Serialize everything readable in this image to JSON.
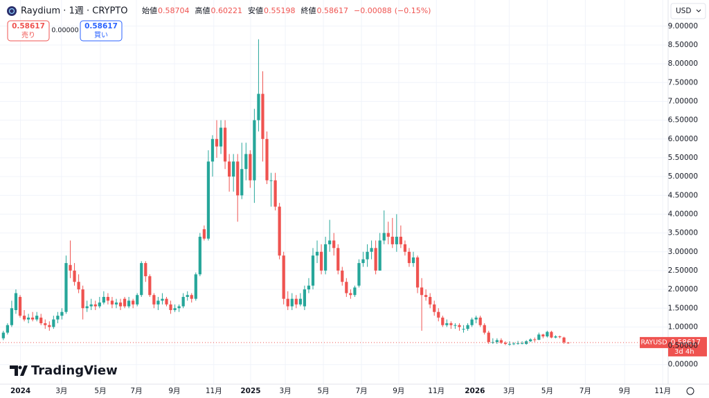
{
  "chart_data": {
    "type": "candlestick",
    "title": "Raydium · 1週 · CRYPTO",
    "legend": {
      "labels": [
        "始値",
        "高値",
        "安値",
        "終値"
      ],
      "change": "−0.00088",
      "change_pct": "(−0.15%)"
    },
    "buttons": {
      "sell_price": "0.58617",
      "sell_label": "売り",
      "spread": "0.00000",
      "buy_price": "0.58617",
      "buy_label": "買い"
    },
    "currency": "USD",
    "symbol_tag": "RAYUSD",
    "price_tag": "0.58617",
    "countdown": "3d 4h",
    "brand": "TradingView",
    "up_color": "#26a69a",
    "down_color": "#ef5350",
    "grid": true,
    "xlim": [
      -0.8,
      158.9
    ],
    "xticks": [
      {
        "value": 4.1,
        "label": "2024"
      },
      {
        "value": 13.9,
        "label": "3月"
      },
      {
        "value": 23.2,
        "label": "5月"
      },
      {
        "value": 31.8,
        "label": "7月"
      },
      {
        "value": 40.9,
        "label": "9月"
      },
      {
        "value": 50.3,
        "label": "11月"
      },
      {
        "value": 59.1,
        "label": "2025"
      },
      {
        "value": 67.4,
        "label": "3月"
      },
      {
        "value": 76.5,
        "label": "5月"
      },
      {
        "value": 85.6,
        "label": "7月"
      },
      {
        "value": 94.5,
        "label": "9月"
      },
      {
        "value": 103.5,
        "label": "11月"
      },
      {
        "value": 112.7,
        "label": "2026"
      },
      {
        "value": 120.9,
        "label": "3月"
      },
      {
        "value": 130,
        "label": "5月"
      },
      {
        "value": 139.1,
        "label": "7月"
      },
      {
        "value": 148.5,
        "label": "9月"
      },
      {
        "value": 157.6,
        "label": "11月"
      }
    ],
    "ylim": [
      -0.52,
      9.18
    ],
    "yticks": [
      {
        "value": 0,
        "label": "0.00000"
      },
      {
        "value": 0.5,
        "label": "0.50000"
      },
      {
        "value": 1,
        "label": "1.00000"
      },
      {
        "value": 1.5,
        "label": "1.50000"
      },
      {
        "value": 2,
        "label": "2.00000"
      },
      {
        "value": 2.5,
        "label": "2.50000"
      },
      {
        "value": 3,
        "label": "3.00000"
      },
      {
        "value": 3.5,
        "label": "3.50000"
      },
      {
        "value": 4,
        "label": "4.00000"
      },
      {
        "value": 4.5,
        "label": "4.50000"
      },
      {
        "value": 5,
        "label": "5.00000"
      },
      {
        "value": 5.5,
        "label": "5.50000"
      },
      {
        "value": 6,
        "label": "6.00000"
      },
      {
        "value": 6.5,
        "label": "6.50000"
      },
      {
        "value": 7,
        "label": "7.00000"
      },
      {
        "value": 7.5,
        "label": "7.50000"
      },
      {
        "value": 8,
        "label": "8.00000"
      },
      {
        "value": 8.5,
        "label": "8.50000"
      },
      {
        "value": 9,
        "label": "9.00000"
      }
    ],
    "ohlc": [
      [
        0.7,
        0.9,
        0.65,
        0.85
      ],
      [
        0.85,
        1.1,
        0.8,
        1.05
      ],
      [
        1.05,
        1.7,
        1.0,
        1.5
      ],
      [
        1.45,
        2.0,
        1.35,
        1.9
      ],
      [
        1.8,
        1.85,
        1.25,
        1.3
      ],
      [
        1.3,
        1.45,
        1.15,
        1.2
      ],
      [
        1.2,
        1.35,
        1.1,
        1.25
      ],
      [
        1.25,
        1.4,
        1.15,
        1.2
      ],
      [
        1.2,
        1.4,
        1.15,
        1.3
      ],
      [
        1.25,
        1.35,
        1.05,
        1.1
      ],
      [
        1.1,
        1.2,
        0.95,
        1.05
      ],
      [
        1.05,
        1.15,
        0.9,
        1.0
      ],
      [
        1.0,
        1.3,
        0.95,
        1.2
      ],
      [
        1.2,
        1.4,
        1.1,
        1.3
      ],
      [
        1.3,
        1.5,
        1.2,
        1.4
      ],
      [
        1.4,
        2.9,
        1.35,
        2.7
      ],
      [
        2.65,
        3.3,
        2.3,
        2.5
      ],
      [
        2.5,
        2.7,
        2.1,
        2.2
      ],
      [
        2.2,
        2.4,
        1.9,
        2.0
      ],
      [
        2.0,
        2.1,
        1.2,
        1.5
      ],
      [
        1.5,
        1.7,
        1.4,
        1.55
      ],
      [
        1.55,
        1.75,
        1.45,
        1.6
      ],
      [
        1.6,
        1.7,
        1.45,
        1.55
      ],
      [
        1.55,
        1.8,
        1.5,
        1.65
      ],
      [
        1.65,
        1.95,
        1.6,
        1.8
      ],
      [
        1.8,
        1.9,
        1.6,
        1.7
      ],
      [
        1.7,
        1.8,
        1.5,
        1.6
      ],
      [
        1.6,
        1.75,
        1.5,
        1.65
      ],
      [
        1.65,
        1.75,
        1.45,
        1.55
      ],
      [
        1.75,
        1.8,
        1.5,
        1.55
      ],
      [
        1.55,
        1.8,
        1.5,
        1.7
      ],
      [
        1.7,
        1.75,
        1.5,
        1.6
      ],
      [
        1.6,
        1.9,
        1.55,
        1.85
      ],
      [
        1.85,
        2.75,
        1.8,
        2.7
      ],
      [
        2.7,
        2.75,
        2.2,
        2.35
      ],
      [
        2.35,
        2.4,
        1.8,
        1.85
      ],
      [
        1.85,
        1.9,
        1.5,
        1.6
      ],
      [
        1.6,
        1.8,
        1.45,
        1.7
      ],
      [
        1.7,
        1.9,
        1.6,
        1.75
      ],
      [
        1.75,
        1.8,
        1.55,
        1.6
      ],
      [
        1.6,
        1.7,
        1.35,
        1.45
      ],
      [
        1.45,
        1.6,
        1.4,
        1.5
      ],
      [
        1.5,
        1.6,
        1.4,
        1.55
      ],
      [
        1.55,
        1.9,
        1.5,
        1.8
      ],
      [
        1.8,
        1.95,
        1.7,
        1.85
      ],
      [
        1.85,
        1.9,
        1.65,
        1.75
      ],
      [
        1.75,
        2.45,
        1.7,
        2.4
      ],
      [
        2.4,
        3.5,
        2.35,
        3.4
      ],
      [
        3.6,
        3.7,
        3.3,
        3.35
      ],
      [
        3.35,
        5.7,
        3.3,
        5.4
      ],
      [
        5.4,
        6.1,
        5.0,
        6.0
      ],
      [
        6.0,
        6.5,
        5.5,
        5.8
      ],
      [
        5.8,
        6.5,
        5.6,
        6.3
      ],
      [
        6.3,
        6.5,
        5.2,
        5.4
      ],
      [
        5.4,
        5.6,
        4.6,
        5.0
      ],
      [
        5.0,
        5.6,
        4.6,
        5.4
      ],
      [
        5.4,
        5.6,
        3.8,
        4.5
      ],
      [
        4.5,
        5.9,
        4.4,
        5.2
      ],
      [
        5.2,
        5.9,
        4.9,
        5.6
      ],
      [
        5.6,
        5.7,
        4.7,
        4.9
      ],
      [
        4.9,
        6.8,
        4.3,
        6.5
      ],
      [
        6.5,
        8.65,
        6.2,
        7.2
      ],
      [
        7.2,
        7.8,
        5.4,
        6.0
      ],
      [
        6.0,
        6.2,
        4.8,
        4.9
      ],
      [
        4.9,
        5.1,
        4.2,
        4.9
      ],
      [
        4.9,
        5.1,
        4.1,
        4.2
      ],
      [
        4.2,
        4.3,
        2.8,
        2.9
      ],
      [
        2.9,
        3.0,
        1.6,
        1.75
      ],
      [
        1.75,
        1.95,
        1.45,
        1.55
      ],
      [
        1.55,
        1.9,
        1.45,
        1.75
      ],
      [
        1.75,
        1.85,
        1.5,
        1.6
      ],
      [
        1.6,
        1.9,
        1.55,
        1.75
      ],
      [
        1.55,
        2.1,
        1.45,
        2.0
      ],
      [
        2.0,
        2.3,
        1.9,
        2.1
      ],
      [
        2.1,
        3.1,
        2.0,
        2.9
      ],
      [
        2.9,
        3.3,
        2.7,
        3.0
      ],
      [
        3.0,
        3.2,
        2.4,
        2.5
      ],
      [
        2.5,
        3.4,
        2.4,
        3.2
      ],
      [
        3.2,
        3.85,
        3.0,
        3.3
      ],
      [
        3.3,
        3.5,
        2.9,
        3.1
      ],
      [
        3.1,
        3.2,
        2.4,
        2.5
      ],
      [
        2.5,
        2.6,
        2.1,
        2.2
      ],
      [
        2.2,
        2.3,
        1.8,
        1.9
      ],
      [
        1.9,
        2.0,
        1.75,
        1.85
      ],
      [
        1.85,
        2.1,
        1.8,
        2.05
      ],
      [
        2.1,
        2.8,
        2.05,
        2.7
      ],
      [
        2.7,
        3.0,
        2.6,
        2.8
      ],
      [
        2.8,
        3.2,
        2.6,
        3.0
      ],
      [
        3.0,
        3.3,
        2.8,
        3.1
      ],
      [
        3.1,
        3.3,
        2.4,
        2.5
      ],
      [
        2.5,
        3.5,
        2.5,
        3.3
      ],
      [
        3.3,
        4.1,
        3.2,
        3.5
      ],
      [
        3.5,
        3.8,
        3.2,
        3.4
      ],
      [
        3.4,
        3.9,
        3.1,
        3.2
      ],
      [
        3.2,
        4.0,
        3.0,
        3.4
      ],
      [
        3.4,
        3.7,
        3.1,
        3.2
      ],
      [
        3.2,
        3.3,
        2.9,
        3.0
      ],
      [
        3.0,
        3.1,
        2.6,
        2.7
      ],
      [
        2.7,
        3.0,
        2.6,
        2.85
      ],
      [
        2.85,
        2.9,
        1.9,
        2.05
      ],
      [
        2.05,
        2.3,
        0.9,
        1.85
      ],
      [
        1.85,
        2.0,
        1.7,
        1.8
      ],
      [
        1.8,
        1.9,
        1.5,
        1.6
      ],
      [
        1.6,
        1.7,
        1.3,
        1.4
      ],
      [
        1.4,
        1.5,
        1.15,
        1.25
      ],
      [
        1.25,
        1.3,
        1.0,
        1.05
      ],
      [
        1.05,
        1.2,
        1.0,
        1.1
      ],
      [
        1.1,
        1.15,
        0.95,
        1.05
      ],
      [
        1.05,
        1.1,
        0.95,
        1.05
      ],
      [
        1.05,
        1.1,
        0.9,
        1.0
      ],
      [
        0.95,
        1.05,
        0.85,
        0.95
      ],
      [
        0.95,
        1.1,
        0.9,
        1.05
      ],
      [
        1.05,
        1.25,
        1.0,
        1.2
      ],
      [
        1.2,
        1.3,
        1.1,
        1.25
      ],
      [
        1.25,
        1.3,
        1.0,
        1.05
      ],
      [
        1.05,
        1.1,
        0.8,
        0.85
      ],
      [
        0.85,
        0.9,
        0.55,
        0.6
      ],
      [
        0.6,
        0.7,
        0.55,
        0.6
      ],
      [
        0.6,
        0.7,
        0.55,
        0.65
      ],
      [
        0.65,
        0.7,
        0.55,
        0.58
      ],
      [
        0.58,
        0.62,
        0.52,
        0.55
      ],
      [
        0.55,
        0.62,
        0.5,
        0.55
      ],
      [
        0.55,
        0.6,
        0.52,
        0.56
      ],
      [
        0.56,
        0.63,
        0.53,
        0.57
      ],
      [
        0.57,
        0.62,
        0.54,
        0.57
      ],
      [
        0.55,
        0.65,
        0.53,
        0.62
      ],
      [
        0.62,
        0.7,
        0.6,
        0.67
      ],
      [
        0.67,
        0.72,
        0.6,
        0.66
      ],
      [
        0.66,
        0.85,
        0.65,
        0.8
      ],
      [
        0.8,
        0.82,
        0.7,
        0.75
      ],
      [
        0.75,
        0.9,
        0.72,
        0.87
      ],
      [
        0.87,
        0.9,
        0.7,
        0.72
      ],
      [
        0.72,
        0.78,
        0.7,
        0.75
      ],
      [
        0.75,
        0.77,
        0.7,
        0.73
      ],
      [
        0.72,
        0.74,
        0.55,
        0.59
      ],
      [
        0.58704,
        0.60221,
        0.55198,
        0.58617
      ]
    ]
  }
}
